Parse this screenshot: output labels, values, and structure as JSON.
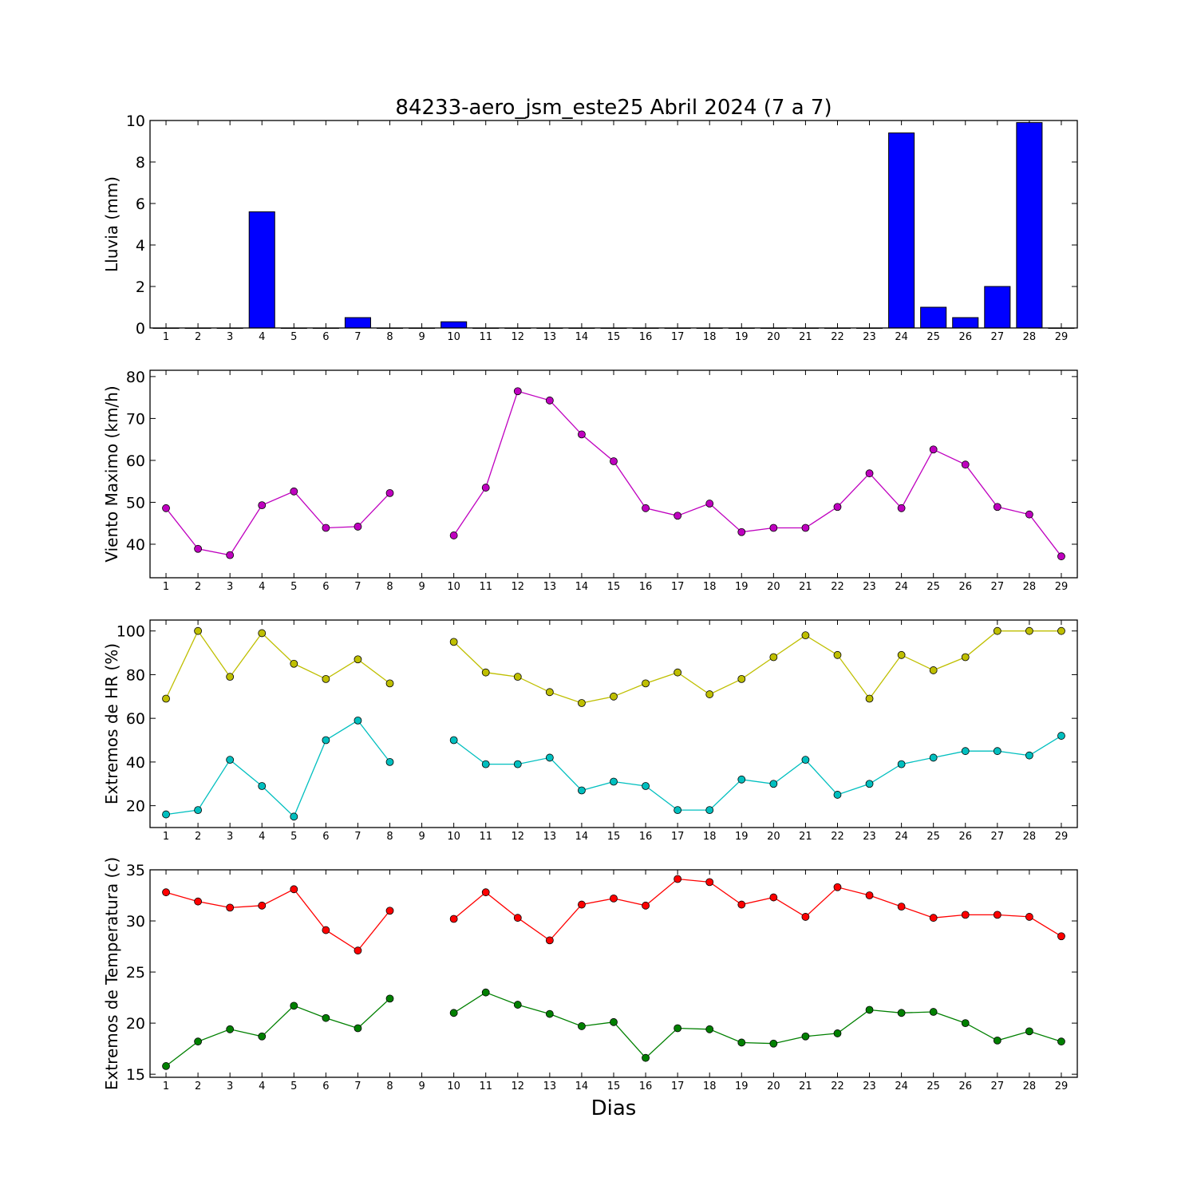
{
  "title": "84233-aero_jsm_este25 Abril 2024  (7 a 7)",
  "xlabel": "Dias",
  "chart_data": [
    {
      "type": "bar",
      "ylabel": "Lluvia (mm)",
      "ylim": [
        0,
        10
      ],
      "yticks": [
        0,
        2,
        4,
        6,
        8,
        10
      ],
      "x": [
        1,
        2,
        3,
        4,
        5,
        6,
        7,
        8,
        9,
        10,
        11,
        12,
        13,
        14,
        15,
        16,
        17,
        18,
        19,
        20,
        21,
        22,
        23,
        24,
        25,
        26,
        27,
        28,
        29
      ],
      "values": [
        0,
        0,
        0,
        5.6,
        0,
        0,
        0.5,
        0,
        0,
        0.3,
        0,
        0,
        0,
        0,
        0,
        0,
        0,
        0,
        0,
        0,
        0,
        0,
        0,
        9.4,
        1.0,
        0.5,
        2.0,
        9.9,
        0
      ],
      "color": "#0000ff"
    },
    {
      "type": "line",
      "ylabel": "Viento Maximo (km/h)",
      "ylim": [
        32,
        81.5
      ],
      "yticks": [
        40,
        50,
        60,
        70,
        80
      ],
      "x": [
        1,
        2,
        3,
        4,
        5,
        6,
        7,
        8,
        9,
        10,
        11,
        12,
        13,
        14,
        15,
        16,
        17,
        18,
        19,
        20,
        21,
        22,
        23,
        24,
        25,
        26,
        27,
        28,
        29
      ],
      "series": [
        {
          "color": "#bf00bf",
          "values": [
            48.6,
            38.9,
            37.4,
            49.3,
            52.6,
            43.9,
            44.2,
            52.2,
            null,
            42.1,
            53.5,
            76.5,
            74.3,
            66.2,
            59.8,
            48.6,
            46.8,
            49.7,
            42.9,
            43.9,
            43.9,
            48.9,
            56.9,
            48.6,
            62.6,
            59.0,
            48.9,
            47.1,
            37.1
          ]
        }
      ]
    },
    {
      "type": "line",
      "ylabel": "Extremos de HR (%)",
      "ylim": [
        10,
        105
      ],
      "yticks": [
        20,
        40,
        60,
        80,
        100
      ],
      "x": [
        1,
        2,
        3,
        4,
        5,
        6,
        7,
        8,
        9,
        10,
        11,
        12,
        13,
        14,
        15,
        16,
        17,
        18,
        19,
        20,
        21,
        22,
        23,
        24,
        25,
        26,
        27,
        28,
        29
      ],
      "series": [
        {
          "color": "#bfbf00",
          "values": [
            69,
            100,
            79,
            99,
            85,
            78,
            87,
            76,
            null,
            95,
            81,
            79,
            72,
            67,
            70,
            76,
            81,
            71,
            78,
            88,
            98,
            89,
            69,
            89,
            82,
            88,
            100,
            100,
            100
          ]
        },
        {
          "color": "#00bfbf",
          "values": [
            16,
            18,
            41,
            29,
            15,
            50,
            59,
            40,
            null,
            50,
            39,
            39,
            42,
            27,
            31,
            29,
            18,
            18,
            32,
            30,
            41,
            25,
            30,
            39,
            42,
            45,
            45,
            43,
            52
          ]
        }
      ]
    },
    {
      "type": "line",
      "ylabel": "Extremos de Temperatura (c)",
      "ylim": [
        14.7,
        35
      ],
      "yticks": [
        15,
        20,
        25,
        30,
        35
      ],
      "x": [
        1,
        2,
        3,
        4,
        5,
        6,
        7,
        8,
        9,
        10,
        11,
        12,
        13,
        14,
        15,
        16,
        17,
        18,
        19,
        20,
        21,
        22,
        23,
        24,
        25,
        26,
        27,
        28,
        29
      ],
      "series": [
        {
          "color": "#ff0000",
          "values": [
            32.8,
            31.9,
            31.3,
            31.5,
            33.1,
            29.1,
            27.1,
            31.0,
            null,
            30.2,
            32.8,
            30.3,
            28.1,
            31.6,
            32.2,
            31.5,
            34.1,
            33.8,
            31.6,
            32.3,
            30.4,
            33.3,
            32.5,
            31.4,
            30.3,
            30.6,
            30.6,
            30.4,
            28.5
          ]
        },
        {
          "color": "#008000",
          "values": [
            15.8,
            18.2,
            19.4,
            18.7,
            21.7,
            20.5,
            19.5,
            22.4,
            null,
            21.0,
            23.0,
            21.8,
            20.9,
            19.7,
            20.1,
            16.6,
            19.5,
            19.4,
            18.1,
            18.0,
            18.7,
            19.0,
            21.3,
            21.0,
            21.1,
            20.0,
            18.3,
            19.2,
            18.2
          ]
        }
      ]
    }
  ]
}
